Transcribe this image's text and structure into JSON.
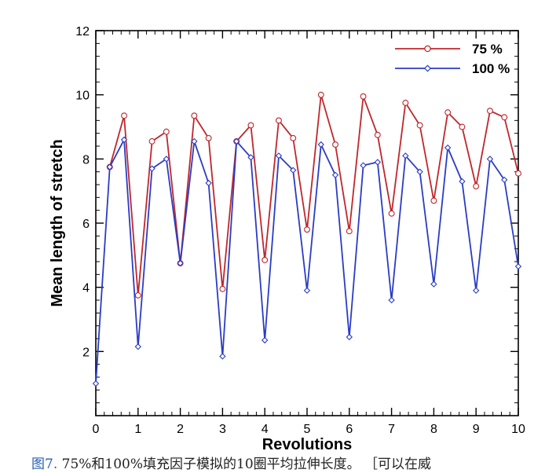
{
  "caption": {
    "fig_label": "图7.",
    "text": " 75%和100%填充因子模拟的10圈平均拉伸长度。 ［可以在威"
  },
  "colors": {
    "series_75": "#c0262c",
    "series_100": "#2a3cc4"
  },
  "chart_data": {
    "type": "line",
    "xlabel": "Revolutions",
    "ylabel": "Mean length of stretch",
    "xlim": [
      0,
      10
    ],
    "ylim": [
      0,
      12
    ],
    "x_ticks": [
      0,
      1,
      2,
      3,
      4,
      5,
      6,
      7,
      8,
      9,
      10
    ],
    "y_ticks": [
      2,
      4,
      6,
      8,
      10,
      12
    ],
    "grid": false,
    "legend_position": "top-right",
    "series": [
      {
        "name": "75 %",
        "color": "#c0262c",
        "marker": "circle",
        "x": [
          0.33,
          0.67,
          1,
          1.33,
          1.67,
          2,
          2.33,
          2.67,
          3,
          3.33,
          3.67,
          4,
          4.33,
          4.67,
          5,
          5.33,
          5.67,
          6,
          6.33,
          6.67,
          7,
          7.33,
          7.67,
          8,
          8.33,
          8.67,
          9,
          9.33,
          9.67,
          10
        ],
        "y": [
          7.75,
          9.35,
          3.75,
          8.55,
          8.85,
          4.75,
          9.35,
          8.65,
          3.95,
          8.55,
          9.05,
          4.85,
          9.2,
          8.65,
          5.8,
          10.0,
          8.45,
          5.75,
          9.95,
          8.75,
          6.3,
          9.75,
          9.05,
          6.7,
          9.45,
          9.0,
          7.15,
          9.5,
          9.3,
          7.55
        ]
      },
      {
        "name": "100 %",
        "color": "#2a3cc4",
        "marker": "diamond",
        "x": [
          0,
          0.33,
          0.67,
          1,
          1.33,
          1.67,
          2,
          2.33,
          2.67,
          3,
          3.33,
          3.67,
          4,
          4.33,
          4.67,
          5,
          5.33,
          5.67,
          6,
          6.33,
          6.67,
          7,
          7.33,
          7.67,
          8,
          8.33,
          8.67,
          9,
          9.33,
          9.67,
          10
        ],
        "y": [
          1.0,
          7.75,
          8.6,
          2.15,
          7.7,
          8.0,
          4.75,
          8.55,
          7.25,
          1.85,
          8.55,
          8.05,
          2.35,
          8.1,
          7.65,
          3.9,
          8.45,
          7.5,
          2.45,
          7.8,
          7.9,
          3.6,
          8.1,
          7.6,
          4.1,
          8.35,
          7.3,
          3.9,
          8.0,
          7.35,
          4.65
        ]
      }
    ]
  }
}
